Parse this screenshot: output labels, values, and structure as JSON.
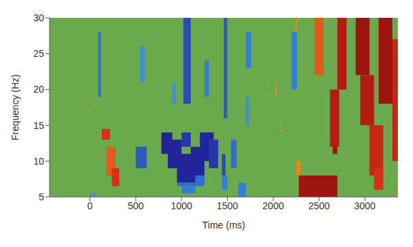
{
  "chart_data": {
    "type": "heatmap",
    "x_label": "Time (ms)",
    "y_label": "Frequency (Hz)",
    "xlim": [
      -440,
      3360
    ],
    "xticks": [
      0,
      500,
      1000,
      1500,
      2000,
      2500,
      3000
    ],
    "ylim": [
      5,
      30
    ],
    "yticks": [
      5,
      10,
      15,
      20,
      25,
      30
    ],
    "zlim": [
      -1,
      1
    ],
    "cells": [
      {
        "x": [
          90,
          120
        ],
        "y": [
          19,
          28
        ],
        "value": -0.6
      },
      {
        "x": [
          550,
          600
        ],
        "y": [
          21,
          26
        ],
        "value": -0.4
      },
      {
        "x": [
          500,
          620
        ],
        "y": [
          9,
          12
        ],
        "value": -0.7
      },
      {
        "x": [
          950,
          1250
        ],
        "y": [
          6.5,
          8
        ],
        "value": -0.6
      },
      {
        "x": [
          1000,
          1150
        ],
        "y": [
          5.5,
          6.5
        ],
        "value": -0.5
      },
      {
        "x": [
          780,
          900
        ],
        "y": [
          11,
          14
        ],
        "value": -1
      },
      {
        "x": [
          850,
          1000
        ],
        "y": [
          9,
          13
        ],
        "value": -1
      },
      {
        "x": [
          950,
          1150
        ],
        "y": [
          7,
          11
        ],
        "value": -1
      },
      {
        "x": [
          1100,
          1250
        ],
        "y": [
          8,
          12
        ],
        "value": -1
      },
      {
        "x": [
          1200,
          1350
        ],
        "y": [
          10,
          14
        ],
        "value": -1
      },
      {
        "x": [
          1300,
          1400
        ],
        "y": [
          9,
          13
        ],
        "value": -0.9
      },
      {
        "x": [
          1000,
          1100
        ],
        "y": [
          12,
          14
        ],
        "value": -0.9
      },
      {
        "x": [
          1020,
          1100
        ],
        "y": [
          18,
          30
        ],
        "value": -0.8
      },
      {
        "x": [
          1460,
          1500
        ],
        "y": [
          16,
          30
        ],
        "value": -0.7
      },
      {
        "x": [
          1250,
          1300
        ],
        "y": [
          19,
          24
        ],
        "value": -0.5
      },
      {
        "x": [
          1620,
          1700
        ],
        "y": [
          5,
          7
        ],
        "value": -0.5
      },
      {
        "x": [
          1440,
          1500
        ],
        "y": [
          6,
          8
        ],
        "value": -0.5
      },
      {
        "x": [
          1440,
          1480
        ],
        "y": [
          8,
          11
        ],
        "value": -0.8
      },
      {
        "x": [
          1700,
          1760
        ],
        "y": [
          23,
          28
        ],
        "value": -0.5
      },
      {
        "x": [
          1700,
          1740
        ],
        "y": [
          15,
          19
        ],
        "value": -0.4
      },
      {
        "x": [
          2200,
          2260
        ],
        "y": [
          20,
          28
        ],
        "value": -0.5
      },
      {
        "x": [
          1540,
          1600
        ],
        "y": [
          9,
          13
        ],
        "value": -0.6
      },
      {
        "x": [
          900,
          940
        ],
        "y": [
          18,
          21
        ],
        "value": -0.4
      },
      {
        "x": [
          0,
          60
        ],
        "y": [
          5,
          5.5
        ],
        "value": -0.4
      },
      {
        "x": [
          130,
          220
        ],
        "y": [
          13,
          14.5
        ],
        "value": 0.6
      },
      {
        "x": [
          180,
          280
        ],
        "y": [
          8,
          12
        ],
        "value": 0.5
      },
      {
        "x": [
          240,
          320
        ],
        "y": [
          6.5,
          9
        ],
        "value": 0.6
      },
      {
        "x": [
          2250,
          2300
        ],
        "y": [
          8,
          10
        ],
        "value": 0.4
      },
      {
        "x": [
          2280,
          2700
        ],
        "y": [
          5,
          8
        ],
        "value": 0.9
      },
      {
        "x": [
          2450,
          2550
        ],
        "y": [
          22,
          30
        ],
        "value": 0.5
      },
      {
        "x": [
          2700,
          2800
        ],
        "y": [
          20,
          30
        ],
        "value": 0.8
      },
      {
        "x": [
          2620,
          2720
        ],
        "y": [
          12,
          20
        ],
        "value": 0.8
      },
      {
        "x": [
          2650,
          2700
        ],
        "y": [
          11,
          12
        ],
        "value": 0.9
      },
      {
        "x": [
          2900,
          3050
        ],
        "y": [
          22,
          30
        ],
        "value": 0.9
      },
      {
        "x": [
          2950,
          3100
        ],
        "y": [
          15,
          22
        ],
        "value": 0.8
      },
      {
        "x": [
          3050,
          3200
        ],
        "y": [
          8,
          15
        ],
        "value": 0.7
      },
      {
        "x": [
          3100,
          3200
        ],
        "y": [
          6,
          9
        ],
        "value": 0.6
      },
      {
        "x": [
          3150,
          3300
        ],
        "y": [
          18,
          30
        ],
        "value": 0.9
      },
      {
        "x": [
          3300,
          3360
        ],
        "y": [
          10,
          27
        ],
        "value": 0.7
      },
      {
        "x": [
          2020,
          2040
        ],
        "y": [
          19,
          21
        ],
        "value": 0.4
      },
      {
        "x": [
          2080,
          2100
        ],
        "y": [
          14,
          15
        ],
        "value": 0.4
      },
      {
        "x": [
          2240,
          2260
        ],
        "y": [
          28,
          30
        ],
        "value": 0.4
      },
      {
        "x": [
          -10,
          0
        ],
        "y": [
          16.5,
          17.5
        ],
        "value": 0.4
      }
    ]
  }
}
